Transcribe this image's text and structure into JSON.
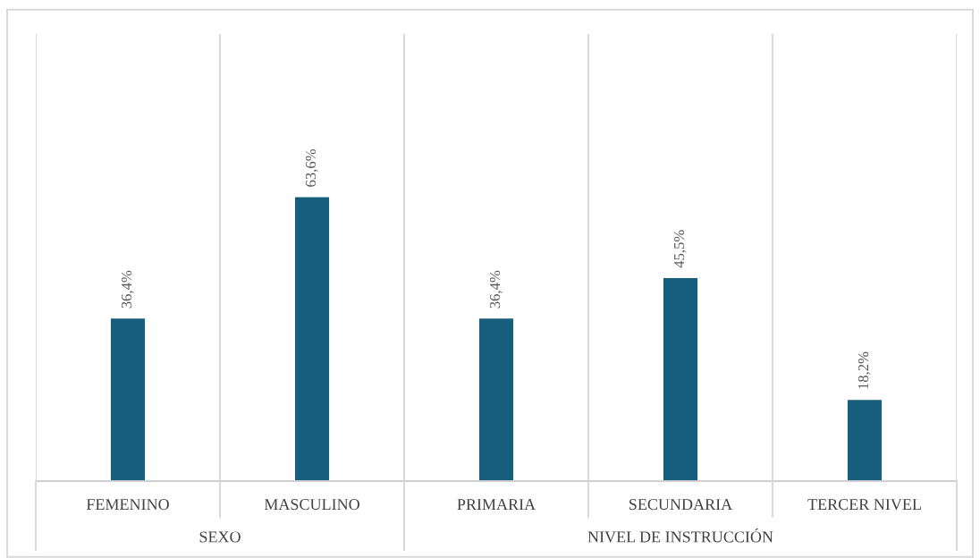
{
  "chart_data": {
    "type": "bar",
    "categories": [
      "FEMENINO",
      "MASCULINO",
      "PRIMARIA",
      "SECUNDARIA",
      "TERCER NIVEL"
    ],
    "values": [
      36.4,
      63.6,
      36.4,
      45.5,
      18.2
    ],
    "value_labels": [
      "36,4%",
      "63,6%",
      "36,4%",
      "45,5%",
      "18,2%"
    ],
    "color": "#175e7e",
    "annotations": [
      "SEXO",
      "NIVEL DE INSTRUCCIÓN"
    ],
    "legend": false
  }
}
